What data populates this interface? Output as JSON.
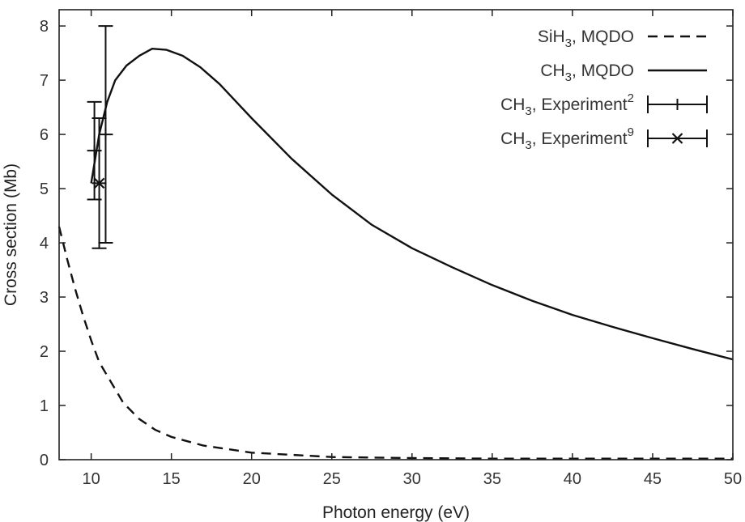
{
  "chart_data": {
    "type": "line",
    "xlabel": "Photon energy (eV)",
    "ylabel": "Cross section (Mb)",
    "xlim": [
      8,
      50
    ],
    "ylim": [
      0,
      8.3
    ],
    "xticks": [
      10,
      15,
      20,
      25,
      30,
      35,
      40,
      45,
      50
    ],
    "yticks": [
      0,
      1,
      2,
      3,
      4,
      5,
      6,
      7,
      8
    ],
    "grid": false,
    "legend_position": "top-right",
    "series": [
      {
        "name": "SiH3, MQDO",
        "name_parts": {
          "pre": "SiH",
          "sub": "3",
          "post": ", MQDO",
          "sup": ""
        },
        "style": "dashed",
        "x": [
          8.0,
          8.5,
          9.0,
          9.5,
          10.0,
          10.5,
          11.0,
          12.0,
          13.0,
          14.0,
          15.0,
          17.0,
          20.0,
          25.0,
          30.0,
          35.0,
          40.0,
          45.0,
          50.0
        ],
        "y": [
          4.3,
          3.7,
          3.15,
          2.65,
          2.2,
          1.8,
          1.55,
          1.05,
          0.75,
          0.55,
          0.42,
          0.26,
          0.13,
          0.05,
          0.03,
          0.02,
          0.02,
          0.02,
          0.02
        ]
      },
      {
        "name": "CH3, MQDO",
        "name_parts": {
          "pre": "CH",
          "sub": "3",
          "post": ", MQDO",
          "sup": ""
        },
        "style": "solid",
        "x": [
          10.0,
          10.5,
          11.0,
          11.5,
          12.2,
          13.0,
          13.8,
          14.7,
          15.7,
          16.8,
          18.0,
          20.0,
          22.5,
          25.0,
          27.5,
          30.0,
          32.5,
          35.0,
          37.5,
          40.0,
          42.5,
          45.0,
          47.5,
          50.0
        ],
        "y": [
          5.1,
          6.0,
          6.6,
          7.0,
          7.27,
          7.45,
          7.58,
          7.56,
          7.45,
          7.24,
          6.93,
          6.3,
          5.55,
          4.89,
          4.33,
          3.9,
          3.55,
          3.22,
          2.93,
          2.67,
          2.45,
          2.24,
          2.04,
          1.85
        ]
      },
      {
        "name": "CH3, Experiment2",
        "name_parts": {
          "pre": "CH",
          "sub": "3",
          "post": ", Experiment",
          "sup": "2"
        },
        "style": "errorbar",
        "marker": "tick",
        "points": [
          {
            "x": 10.2,
            "y": 5.7,
            "low": 4.8,
            "high": 6.6
          },
          {
            "x": 10.9,
            "y": 6.0,
            "low": 4.0,
            "high": 8.0
          }
        ]
      },
      {
        "name": "CH3, Experiment9",
        "name_parts": {
          "pre": "CH",
          "sub": "3",
          "post": ", Experiment",
          "sup": "9"
        },
        "style": "errorbar",
        "marker": "x",
        "points": [
          {
            "x": 10.5,
            "y": 5.1,
            "low": 3.9,
            "high": 6.3
          }
        ]
      }
    ]
  }
}
